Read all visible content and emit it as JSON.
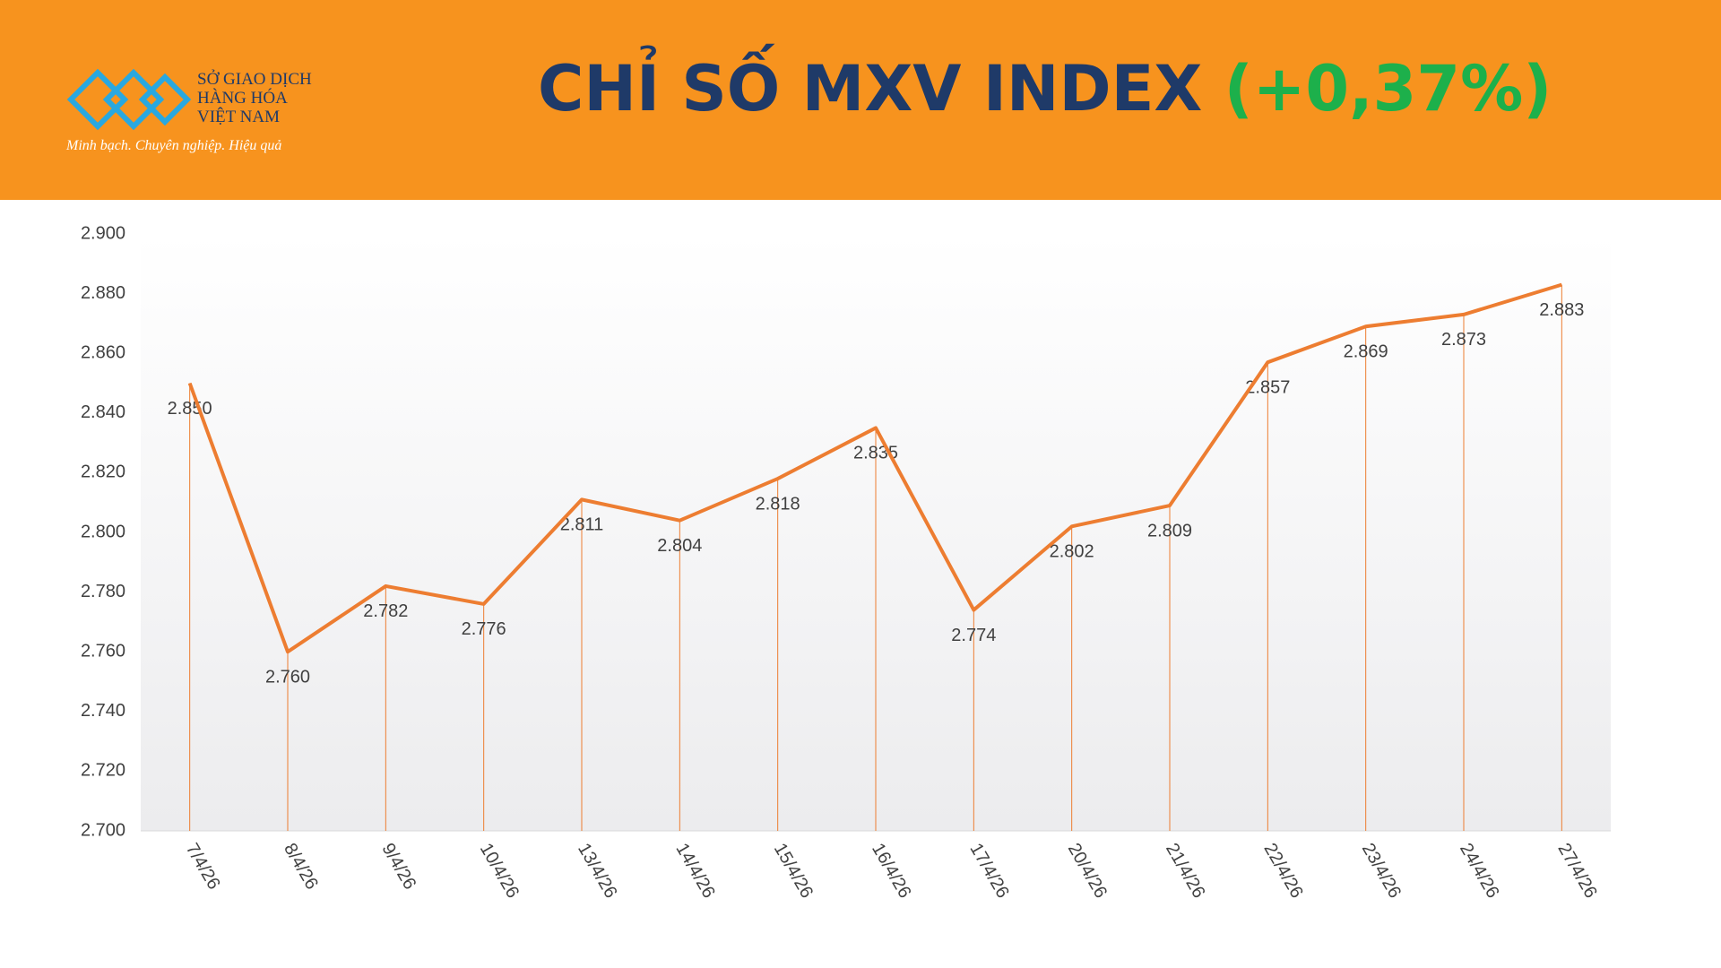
{
  "logo": {
    "lines": [
      "SỞ GIAO DỊCH",
      "HÀNG HÓA",
      "VIỆT NAM"
    ],
    "tagline": "Minh bạch. Chuyên nghiệp. Hiệu quả"
  },
  "chart_data": {
    "type": "line",
    "title": "CHỈ SỐ MXV INDEX",
    "title_change": "(+0,37%)",
    "categories": [
      "7/4/26",
      "8/4/26",
      "9/4/26",
      "10/4/26",
      "13/4/26",
      "14/4/26",
      "15/4/26",
      "16/4/26",
      "17/4/26",
      "20/4/26",
      "21/4/26",
      "22/4/26",
      "23/4/26",
      "24/4/26",
      "27/4/26"
    ],
    "values": [
      2850,
      2760,
      2782,
      2776,
      2811,
      2804,
      2818,
      2835,
      2774,
      2802,
      2809,
      2857,
      2869,
      2873,
      2883
    ],
    "value_labels": [
      "2.850",
      "2.760",
      "2.782",
      "2.776",
      "2.811",
      "2.804",
      "2.818",
      "2.835",
      "2.774",
      "2.802",
      "2.809",
      "2.857",
      "2.869",
      "2.873",
      "2.883"
    ],
    "color": "#ed7d31",
    "ylim": [
      2700,
      2900
    ],
    "yticks": [
      {
        "value": 2700,
        "label": "2.700"
      },
      {
        "value": 2720,
        "label": "2.720"
      },
      {
        "value": 2740,
        "label": "2.740"
      },
      {
        "value": 2760,
        "label": "2.760"
      },
      {
        "value": 2780,
        "label": "2.780"
      },
      {
        "value": 2800,
        "label": "2.800"
      },
      {
        "value": 2820,
        "label": "2.820"
      },
      {
        "value": 2840,
        "label": "2.840"
      },
      {
        "value": 2860,
        "label": "2.860"
      },
      {
        "value": 2880,
        "label": "2.880"
      },
      {
        "value": 2900,
        "label": "2.900"
      }
    ],
    "drop_lines": true
  }
}
